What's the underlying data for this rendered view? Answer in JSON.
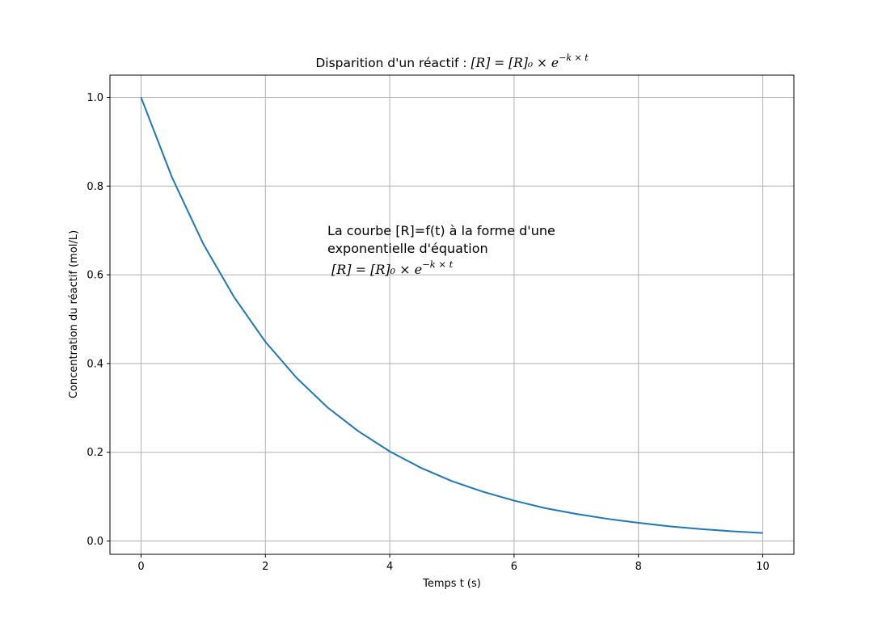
{
  "chart_data": {
    "type": "line",
    "title": {
      "prefix": "Disparition d'un réactif : ",
      "formula": "[R] = [R]₀ × e",
      "exponent": "−k × t"
    },
    "xlabel": "Temps t (s)",
    "ylabel": "Concentration du réactif (mol/L)",
    "xlim": [
      -0.5,
      10.5
    ],
    "ylim": [
      -0.03,
      1.05
    ],
    "xticks": [
      0,
      2,
      4,
      6,
      8,
      10
    ],
    "yticks": [
      0.0,
      0.2,
      0.4,
      0.6,
      0.8,
      1.0
    ],
    "xtick_labels": [
      "0",
      "2",
      "4",
      "6",
      "8",
      "10"
    ],
    "ytick_labels": [
      "0.0",
      "0.2",
      "0.4",
      "0.6",
      "0.8",
      "1.0"
    ],
    "grid": true,
    "series": [
      {
        "color": "#1f77b4",
        "x": [
          0,
          0.5,
          1,
          1.5,
          2,
          2.5,
          3,
          3.5,
          4,
          4.5,
          5,
          5.5,
          6,
          6.5,
          7,
          7.5,
          8,
          8.5,
          9,
          9.5,
          10
        ],
        "y": [
          1.0,
          0.819,
          0.67,
          0.549,
          0.449,
          0.368,
          0.301,
          0.247,
          0.202,
          0.165,
          0.135,
          0.111,
          0.091,
          0.074,
          0.061,
          0.05,
          0.041,
          0.033,
          0.027,
          0.022,
          0.018
        ]
      }
    ],
    "annotation": {
      "line1": "La courbe [R]=f(t) à la forme d'une",
      "line2": "exponentielle d'équation",
      "formula": "[R] = [R]₀ × e",
      "exponent": "−k × t"
    }
  }
}
